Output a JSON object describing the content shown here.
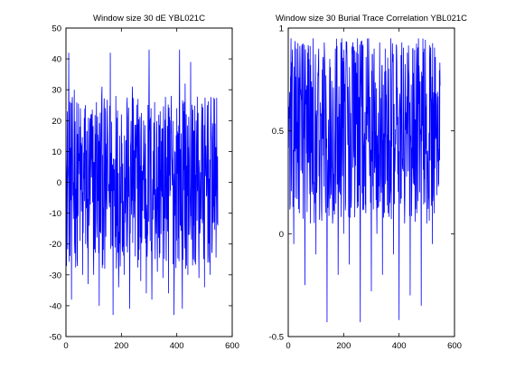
{
  "figure": {
    "background": "#ffffff",
    "series_color": "#0000ff"
  },
  "chart_data": [
    {
      "type": "line",
      "title": "Window size 30 dE YBL021C",
      "xlabel": "",
      "ylabel": "",
      "xlim": [
        0,
        600
      ],
      "ylim": [
        -50,
        50
      ],
      "xticks": [
        0,
        200,
        400,
        600
      ],
      "yticks": [
        -50,
        -40,
        -30,
        -20,
        -10,
        0,
        10,
        20,
        30,
        40,
        50
      ],
      "xtick_labels": [
        "0",
        "200",
        "400",
        "600"
      ],
      "ytick_labels": [
        "-50",
        "-40",
        "-30",
        "-20",
        "-10",
        "0",
        "10",
        "20",
        "30",
        "40",
        "50"
      ],
      "grid": false,
      "series": [
        {
          "color": "#0000ff",
          "x": [
            0,
            10,
            20,
            30,
            40,
            50,
            60,
            70,
            80,
            90,
            100,
            110,
            120,
            130,
            140,
            150,
            160,
            170,
            180,
            190,
            200,
            210,
            220,
            230,
            240,
            250,
            260,
            270,
            280,
            290,
            300,
            310,
            320,
            330,
            340,
            350,
            360,
            370,
            380,
            390,
            400,
            410,
            420,
            430,
            440,
            450,
            460,
            470,
            480,
            490,
            500,
            510,
            520,
            530,
            540,
            548
          ],
          "y": [
            -12,
            42,
            -38,
            30,
            -25,
            18,
            -30,
            25,
            -33,
            22,
            -30,
            26,
            -40,
            31,
            -28,
            20,
            42,
            -43,
            28,
            -34,
            22,
            -30,
            25,
            -41,
            31,
            -24,
            27,
            -32,
            20,
            -36,
            43,
            -38,
            26,
            -29,
            23,
            -31,
            18,
            -36,
            28,
            -43,
            24,
            43,
            -41,
            32,
            -30,
            39,
            -25,
            20,
            -31,
            22,
            -34,
            25,
            -30,
            18,
            6,
            -14
          ]
        }
      ]
    },
    {
      "type": "line",
      "title": "Window size 30 Burial Trace Correlation YBL021C",
      "xlabel": "",
      "ylabel": "",
      "xlim": [
        0,
        600
      ],
      "ylim": [
        -0.5,
        1
      ],
      "xticks": [
        0,
        200,
        400,
        600
      ],
      "yticks": [
        -0.5,
        0,
        0.5,
        1
      ],
      "xtick_labels": [
        "0",
        "200",
        "400",
        "600"
      ],
      "ytick_labels": [
        "-0.5",
        "0",
        "0.5",
        "1"
      ],
      "grid": false,
      "series": [
        {
          "color": "#0000ff",
          "x": [
            0,
            10,
            20,
            30,
            40,
            50,
            60,
            70,
            80,
            90,
            100,
            110,
            120,
            130,
            140,
            150,
            160,
            170,
            180,
            190,
            200,
            210,
            220,
            230,
            240,
            250,
            260,
            270,
            280,
            290,
            300,
            310,
            320,
            330,
            340,
            350,
            360,
            370,
            380,
            390,
            400,
            410,
            420,
            430,
            440,
            450,
            460,
            470,
            480,
            490,
            500,
            510,
            520,
            530,
            540,
            548
          ],
          "y": [
            0.5,
            0.95,
            -0.05,
            0.9,
            0.1,
            0.92,
            -0.25,
            0.88,
            0.05,
            0.95,
            -0.1,
            0.9,
            0.12,
            0.93,
            -0.43,
            0.85,
            0.05,
            0.9,
            -0.2,
            0.93,
            0.0,
            0.88,
            -0.15,
            0.9,
            0.08,
            0.95,
            -0.43,
            0.92,
            0.1,
            0.95,
            -0.28,
            0.9,
            0.0,
            0.93,
            -0.2,
            0.9,
            0.1,
            0.95,
            -0.1,
            0.92,
            -0.42,
            0.93,
            0.05,
            0.88,
            -0.3,
            0.9,
            0.12,
            0.95,
            -0.35,
            0.9,
            0.05,
            0.85,
            -0.05,
            0.82,
            0.35,
            0.72
          ]
        }
      ]
    }
  ]
}
